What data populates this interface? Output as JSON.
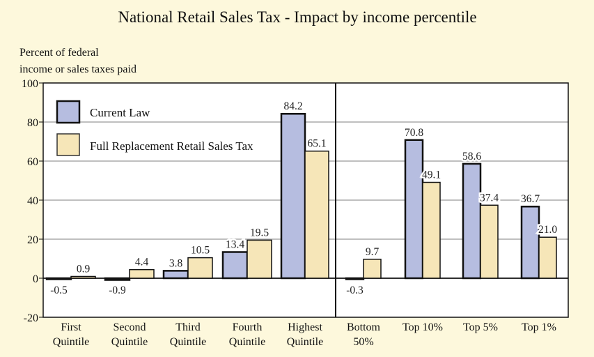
{
  "chart_data": {
    "type": "bar",
    "title": "National Retail Sales Tax - Impact by income percentile",
    "ylabel": [
      "Percent of federal",
      "income or sales taxes paid"
    ],
    "xlabel": "",
    "ylim": [
      -20,
      100
    ],
    "yticks": [
      "-20",
      "0",
      "20",
      "40",
      "60",
      "80",
      "100"
    ],
    "grid": true,
    "legend_placement": "top-left",
    "categories": [
      [
        "First",
        "Quintile"
      ],
      [
        "Second",
        "Quintile"
      ],
      [
        "Third",
        "Quintile"
      ],
      [
        "Fourth",
        "Quintile"
      ],
      [
        "Highest",
        "Quintile"
      ],
      [
        "Bottom",
        "50%"
      ],
      [
        "Top 10%"
      ],
      [
        "Top 5%"
      ],
      [
        "Top 1%"
      ]
    ],
    "series": [
      {
        "name": "Current Law",
        "color": "#b6bde0",
        "values": [
          -0.5,
          -0.9,
          3.8,
          13.4,
          84.2,
          -0.3,
          70.8,
          58.6,
          36.7
        ],
        "labels": [
          "-0.5",
          "-0.9",
          "3.8",
          "13.4",
          "84.2",
          "-0.3",
          "70.8",
          "58.6",
          "36.7"
        ]
      },
      {
        "name": "Full Replacement Retail Sales Tax",
        "color": "#f6e6b8",
        "values": [
          0.9,
          4.4,
          10.5,
          19.5,
          65.1,
          9.7,
          49.1,
          37.4,
          21.0
        ],
        "labels": [
          "0.9",
          "4.4",
          "10.5",
          "19.5",
          "65.1",
          "9.7",
          "49.1",
          "37.4",
          "21.0"
        ]
      }
    ]
  }
}
